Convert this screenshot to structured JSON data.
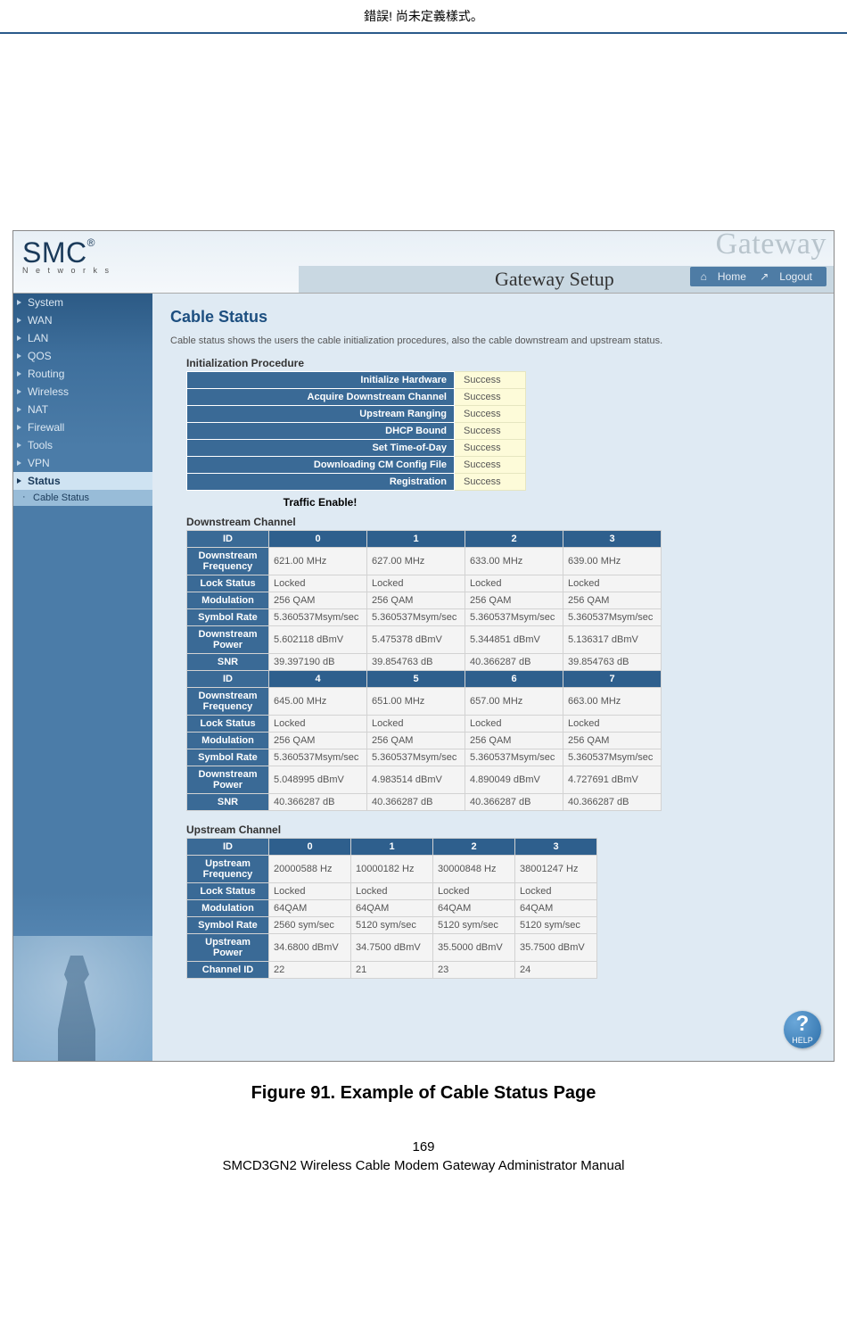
{
  "doc_header": "錯誤! 尚未定義樣式。",
  "header": {
    "logo": "SMC",
    "logo_sub": "N e t w o r k s",
    "brand_ghost": "Gateway",
    "brand": "Gateway Setup",
    "home": "Home",
    "logout": "Logout"
  },
  "sidebar": {
    "items": [
      "System",
      "WAN",
      "LAN",
      "QOS",
      "Routing",
      "Wireless",
      "NAT",
      "Firewall",
      "Tools",
      "VPN"
    ],
    "active": "Status",
    "sub": "Cable Status"
  },
  "content": {
    "title": "Cable Status",
    "desc": "Cable status shows the users the cable initialization procedures, also the cable downstream and upstream status.",
    "init_label": "Initialization Procedure",
    "init_rows": [
      {
        "label": "Initialize Hardware",
        "value": "Success"
      },
      {
        "label": "Acquire Downstream Channel",
        "value": "Success"
      },
      {
        "label": "Upstream Ranging",
        "value": "Success"
      },
      {
        "label": "DHCP Bound",
        "value": "Success"
      },
      {
        "label": "Set Time-of-Day",
        "value": "Success"
      },
      {
        "label": "Downloading CM Config File",
        "value": "Success"
      },
      {
        "label": "Registration",
        "value": "Success"
      }
    ],
    "traffic": "Traffic Enable!",
    "ds_label": "Downstream Channel",
    "ds_rowheads": [
      "Downstream Frequency",
      "Lock Status",
      "Modulation",
      "Symbol Rate",
      "Downstream Power",
      "SNR"
    ],
    "ds_block1": {
      "ids": [
        "0",
        "1",
        "2",
        "3"
      ],
      "rows": [
        [
          "621.00 MHz",
          "627.00 MHz",
          "633.00 MHz",
          "639.00 MHz"
        ],
        [
          "Locked",
          "Locked",
          "Locked",
          "Locked"
        ],
        [
          "256 QAM",
          "256 QAM",
          "256 QAM",
          "256 QAM"
        ],
        [
          "5.360537Msym/sec",
          "5.360537Msym/sec",
          "5.360537Msym/sec",
          "5.360537Msym/sec"
        ],
        [
          "5.602118 dBmV",
          "5.475378 dBmV",
          "5.344851 dBmV",
          "5.136317 dBmV"
        ],
        [
          "39.397190 dB",
          "39.854763 dB",
          "40.366287 dB",
          "39.854763 dB"
        ]
      ]
    },
    "ds_block2": {
      "ids": [
        "4",
        "5",
        "6",
        "7"
      ],
      "rows": [
        [
          "645.00 MHz",
          "651.00 MHz",
          "657.00 MHz",
          "663.00 MHz"
        ],
        [
          "Locked",
          "Locked",
          "Locked",
          "Locked"
        ],
        [
          "256 QAM",
          "256 QAM",
          "256 QAM",
          "256 QAM"
        ],
        [
          "5.360537Msym/sec",
          "5.360537Msym/sec",
          "5.360537Msym/sec",
          "5.360537Msym/sec"
        ],
        [
          "5.048995 dBmV",
          "4.983514 dBmV",
          "4.890049 dBmV",
          "4.727691 dBmV"
        ],
        [
          "40.366287 dB",
          "40.366287 dB",
          "40.366287 dB",
          "40.366287 dB"
        ]
      ]
    },
    "us_label": "Upstream Channel",
    "us_rowheads": [
      "Upstream Frequency",
      "Lock Status",
      "Modulation",
      "Symbol Rate",
      "Upstream Power",
      "Channel ID"
    ],
    "us": {
      "ids": [
        "0",
        "1",
        "2",
        "3"
      ],
      "rows": [
        [
          "20000588 Hz",
          "10000182 Hz",
          "30000848 Hz",
          "38001247 Hz"
        ],
        [
          "Locked",
          "Locked",
          "Locked",
          "Locked"
        ],
        [
          "64QAM",
          "64QAM",
          "64QAM",
          "64QAM"
        ],
        [
          "2560 sym/sec",
          "5120 sym/sec",
          "5120 sym/sec",
          "5120 sym/sec"
        ],
        [
          "34.6800 dBmV",
          "34.7500 dBmV",
          "35.5000 dBmV",
          "35.7500 dBmV"
        ],
        [
          "22",
          "21",
          "23",
          "24"
        ]
      ]
    },
    "help": "HELP"
  },
  "caption": "Figure 91. Example of Cable Status Page",
  "footer": {
    "page": "169",
    "manual": "SMCD3GN2 Wireless Cable Modem Gateway Administrator Manual"
  },
  "id_label": "ID"
}
